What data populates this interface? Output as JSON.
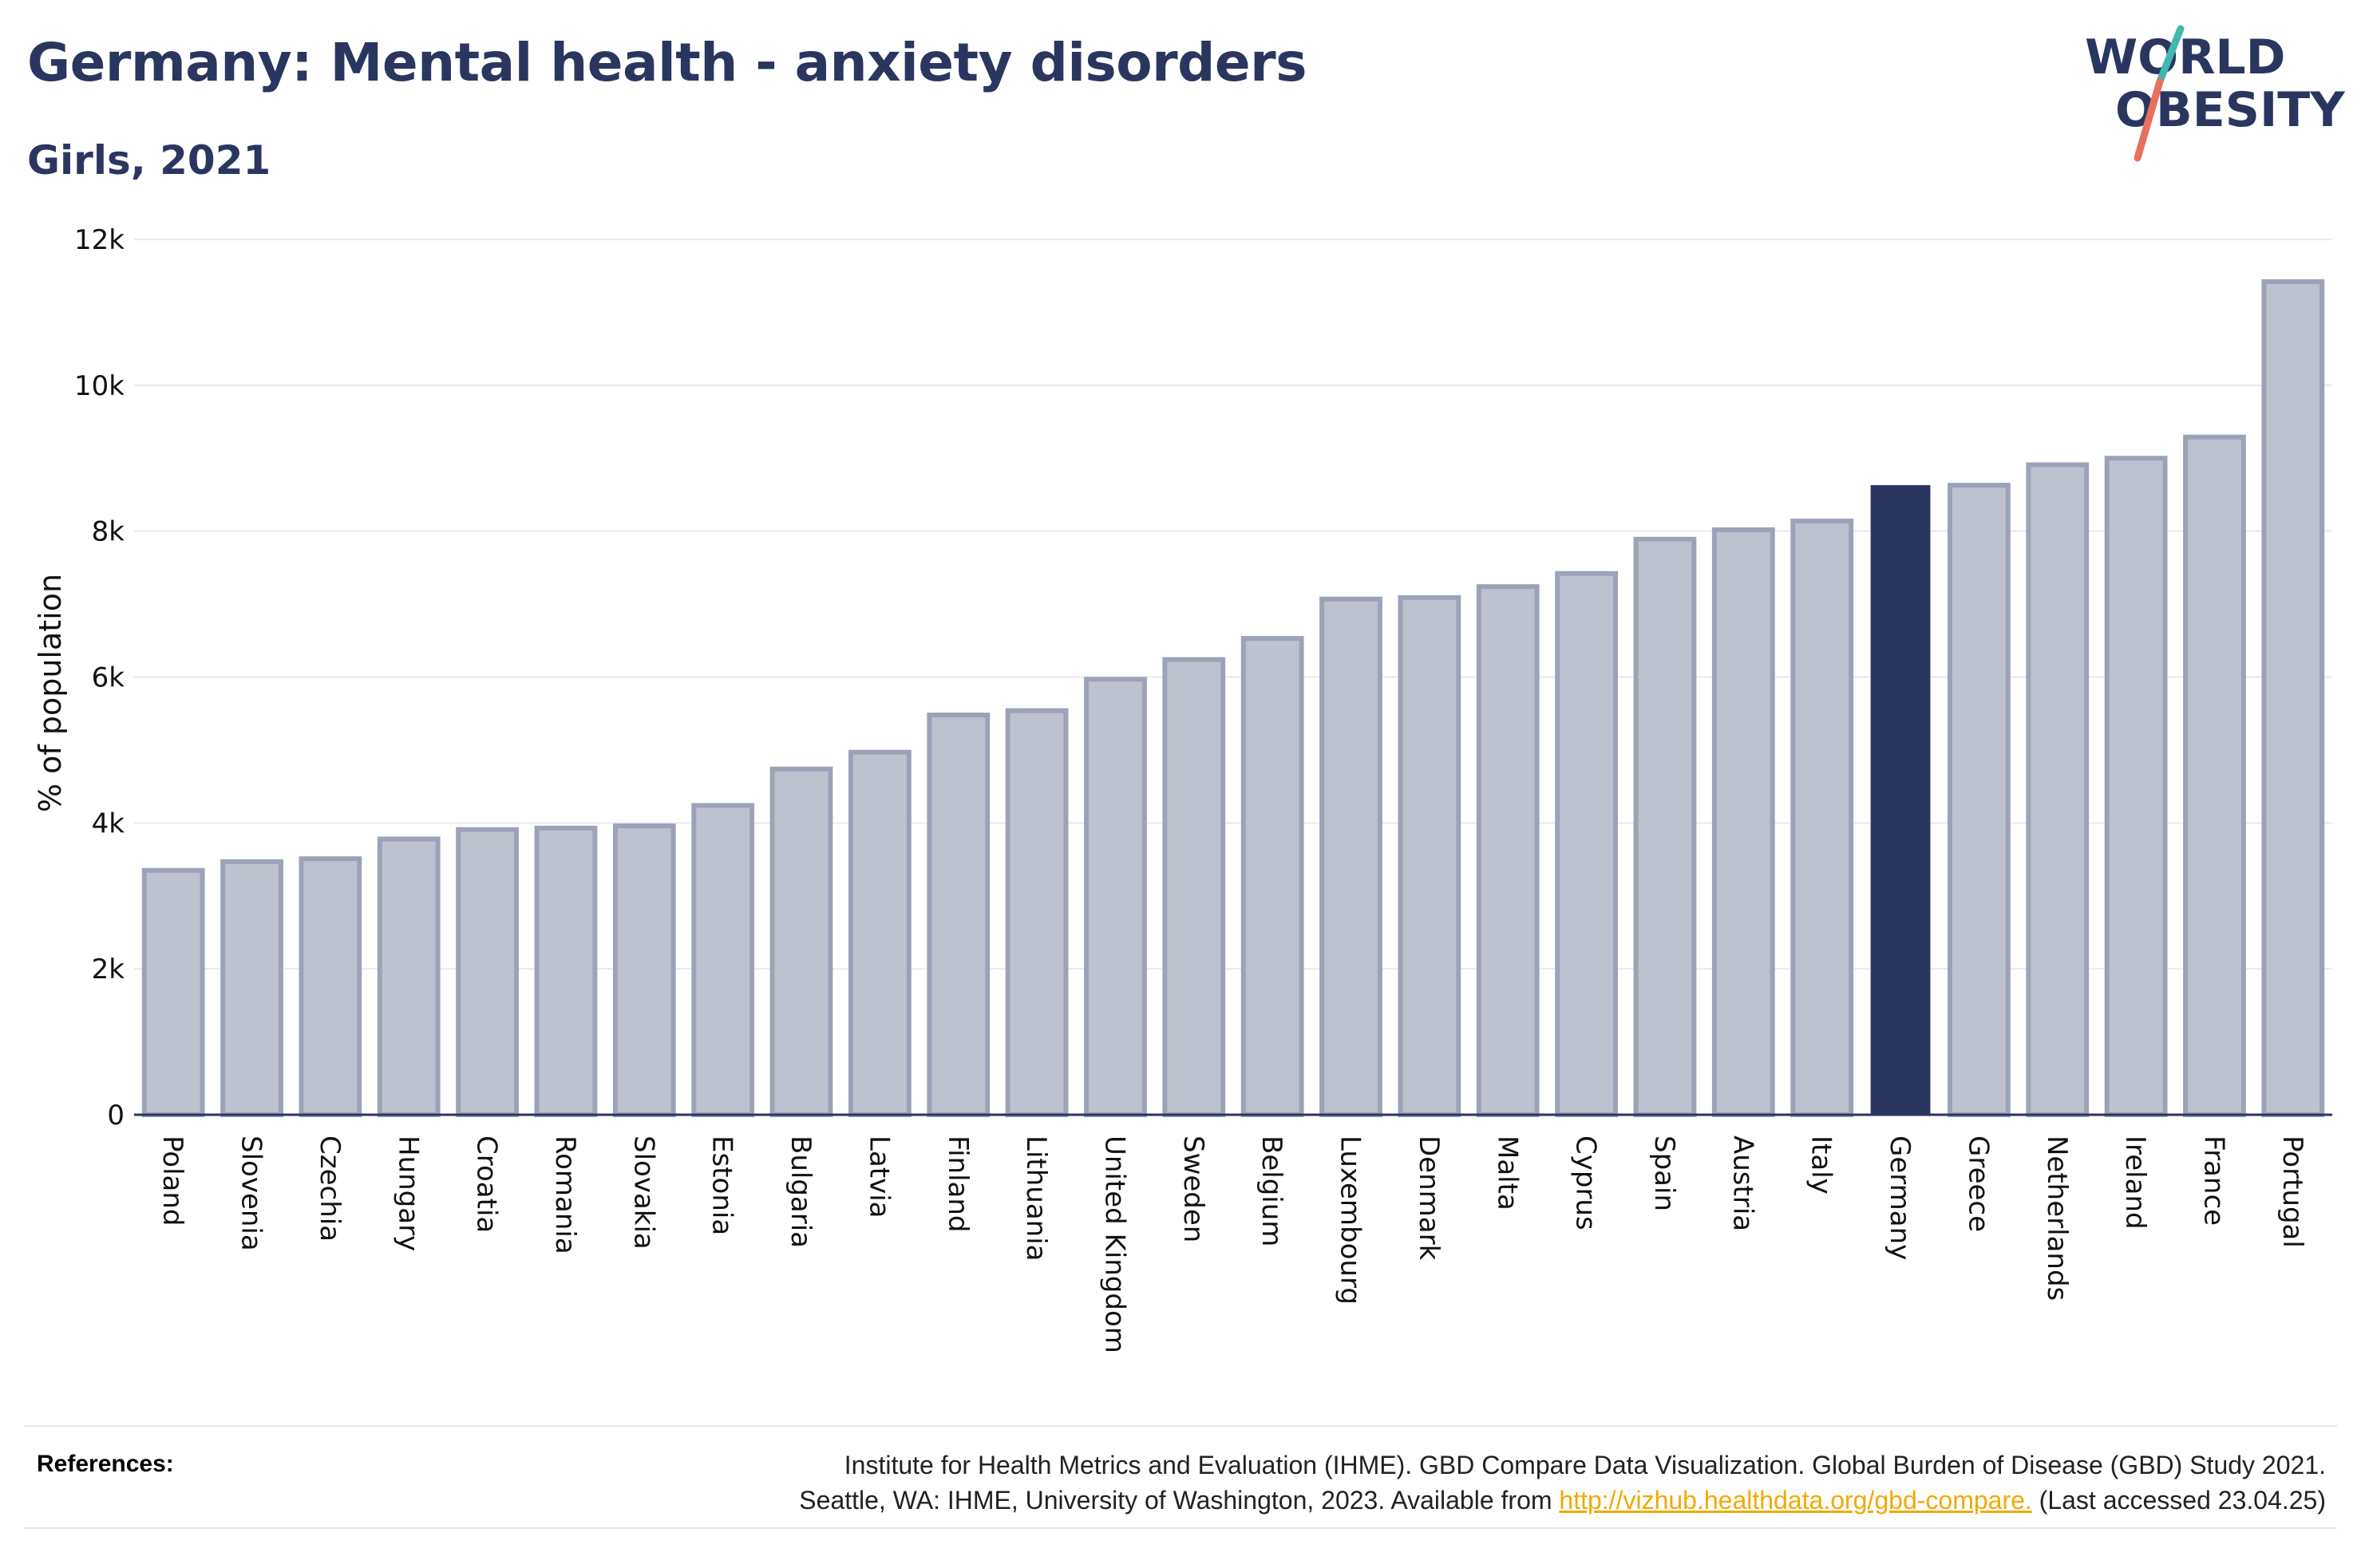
{
  "title": "Germany: Mental health - anxiety disorders",
  "subtitle": "Girls, 2021",
  "logo": {
    "line1": "WORLD",
    "line2": "OBESITY"
  },
  "colors": {
    "text": "#2b3660",
    "highlight": "#2b3660",
    "bar_fill": "#bec2ce",
    "bar_stroke": "#9ca3b8",
    "logo_teal": "#3fb8af",
    "logo_coral": "#e8705f",
    "link": "#f2a900"
  },
  "chart_data": {
    "type": "bar",
    "title": "Germany: Mental health - anxiety disorders",
    "subtitle": "Girls, 2021",
    "xlabel": "",
    "ylabel": "% of population",
    "ylim": [
      0,
      12000
    ],
    "yticks": [
      0,
      2000,
      4000,
      6000,
      8000,
      10000,
      12000
    ],
    "ytick_labels": [
      "0",
      "2k",
      "4k",
      "6k",
      "8k",
      "10k",
      "12k"
    ],
    "grid": true,
    "highlight": "Germany",
    "categories": [
      "Poland",
      "Slovenia",
      "Czechia",
      "Hungary",
      "Croatia",
      "Romania",
      "Slovakia",
      "Estonia",
      "Bulgaria",
      "Latvia",
      "Finland",
      "Lithuania",
      "United Kingdom",
      "Sweden",
      "Belgium",
      "Luxembourg",
      "Denmark",
      "Malta",
      "Cyprus",
      "Spain",
      "Austria",
      "Italy",
      "Germany",
      "Greece",
      "Netherlands",
      "Ireland",
      "France",
      "Portugal"
    ],
    "values": [
      3350,
      3470,
      3510,
      3780,
      3910,
      3930,
      3960,
      4240,
      4740,
      4970,
      5480,
      5540,
      5970,
      6240,
      6530,
      7070,
      7090,
      7240,
      7420,
      7890,
      8020,
      8140,
      8620,
      8630,
      8910,
      9000,
      9290,
      11420
    ]
  },
  "references": {
    "label": "References:",
    "line1": "Institute for Health Metrics and Evaluation (IHME). GBD Compare Data Visualization. Global Burden of Disease (GBD) Study 2021.",
    "line2_prefix": "Seattle, WA: IHME, University of Washington, 2023. Available from ",
    "link": "http://vizhub.healthdata.org/gbd-compare.",
    "line2_suffix": " (Last accessed 23.04.25)"
  }
}
